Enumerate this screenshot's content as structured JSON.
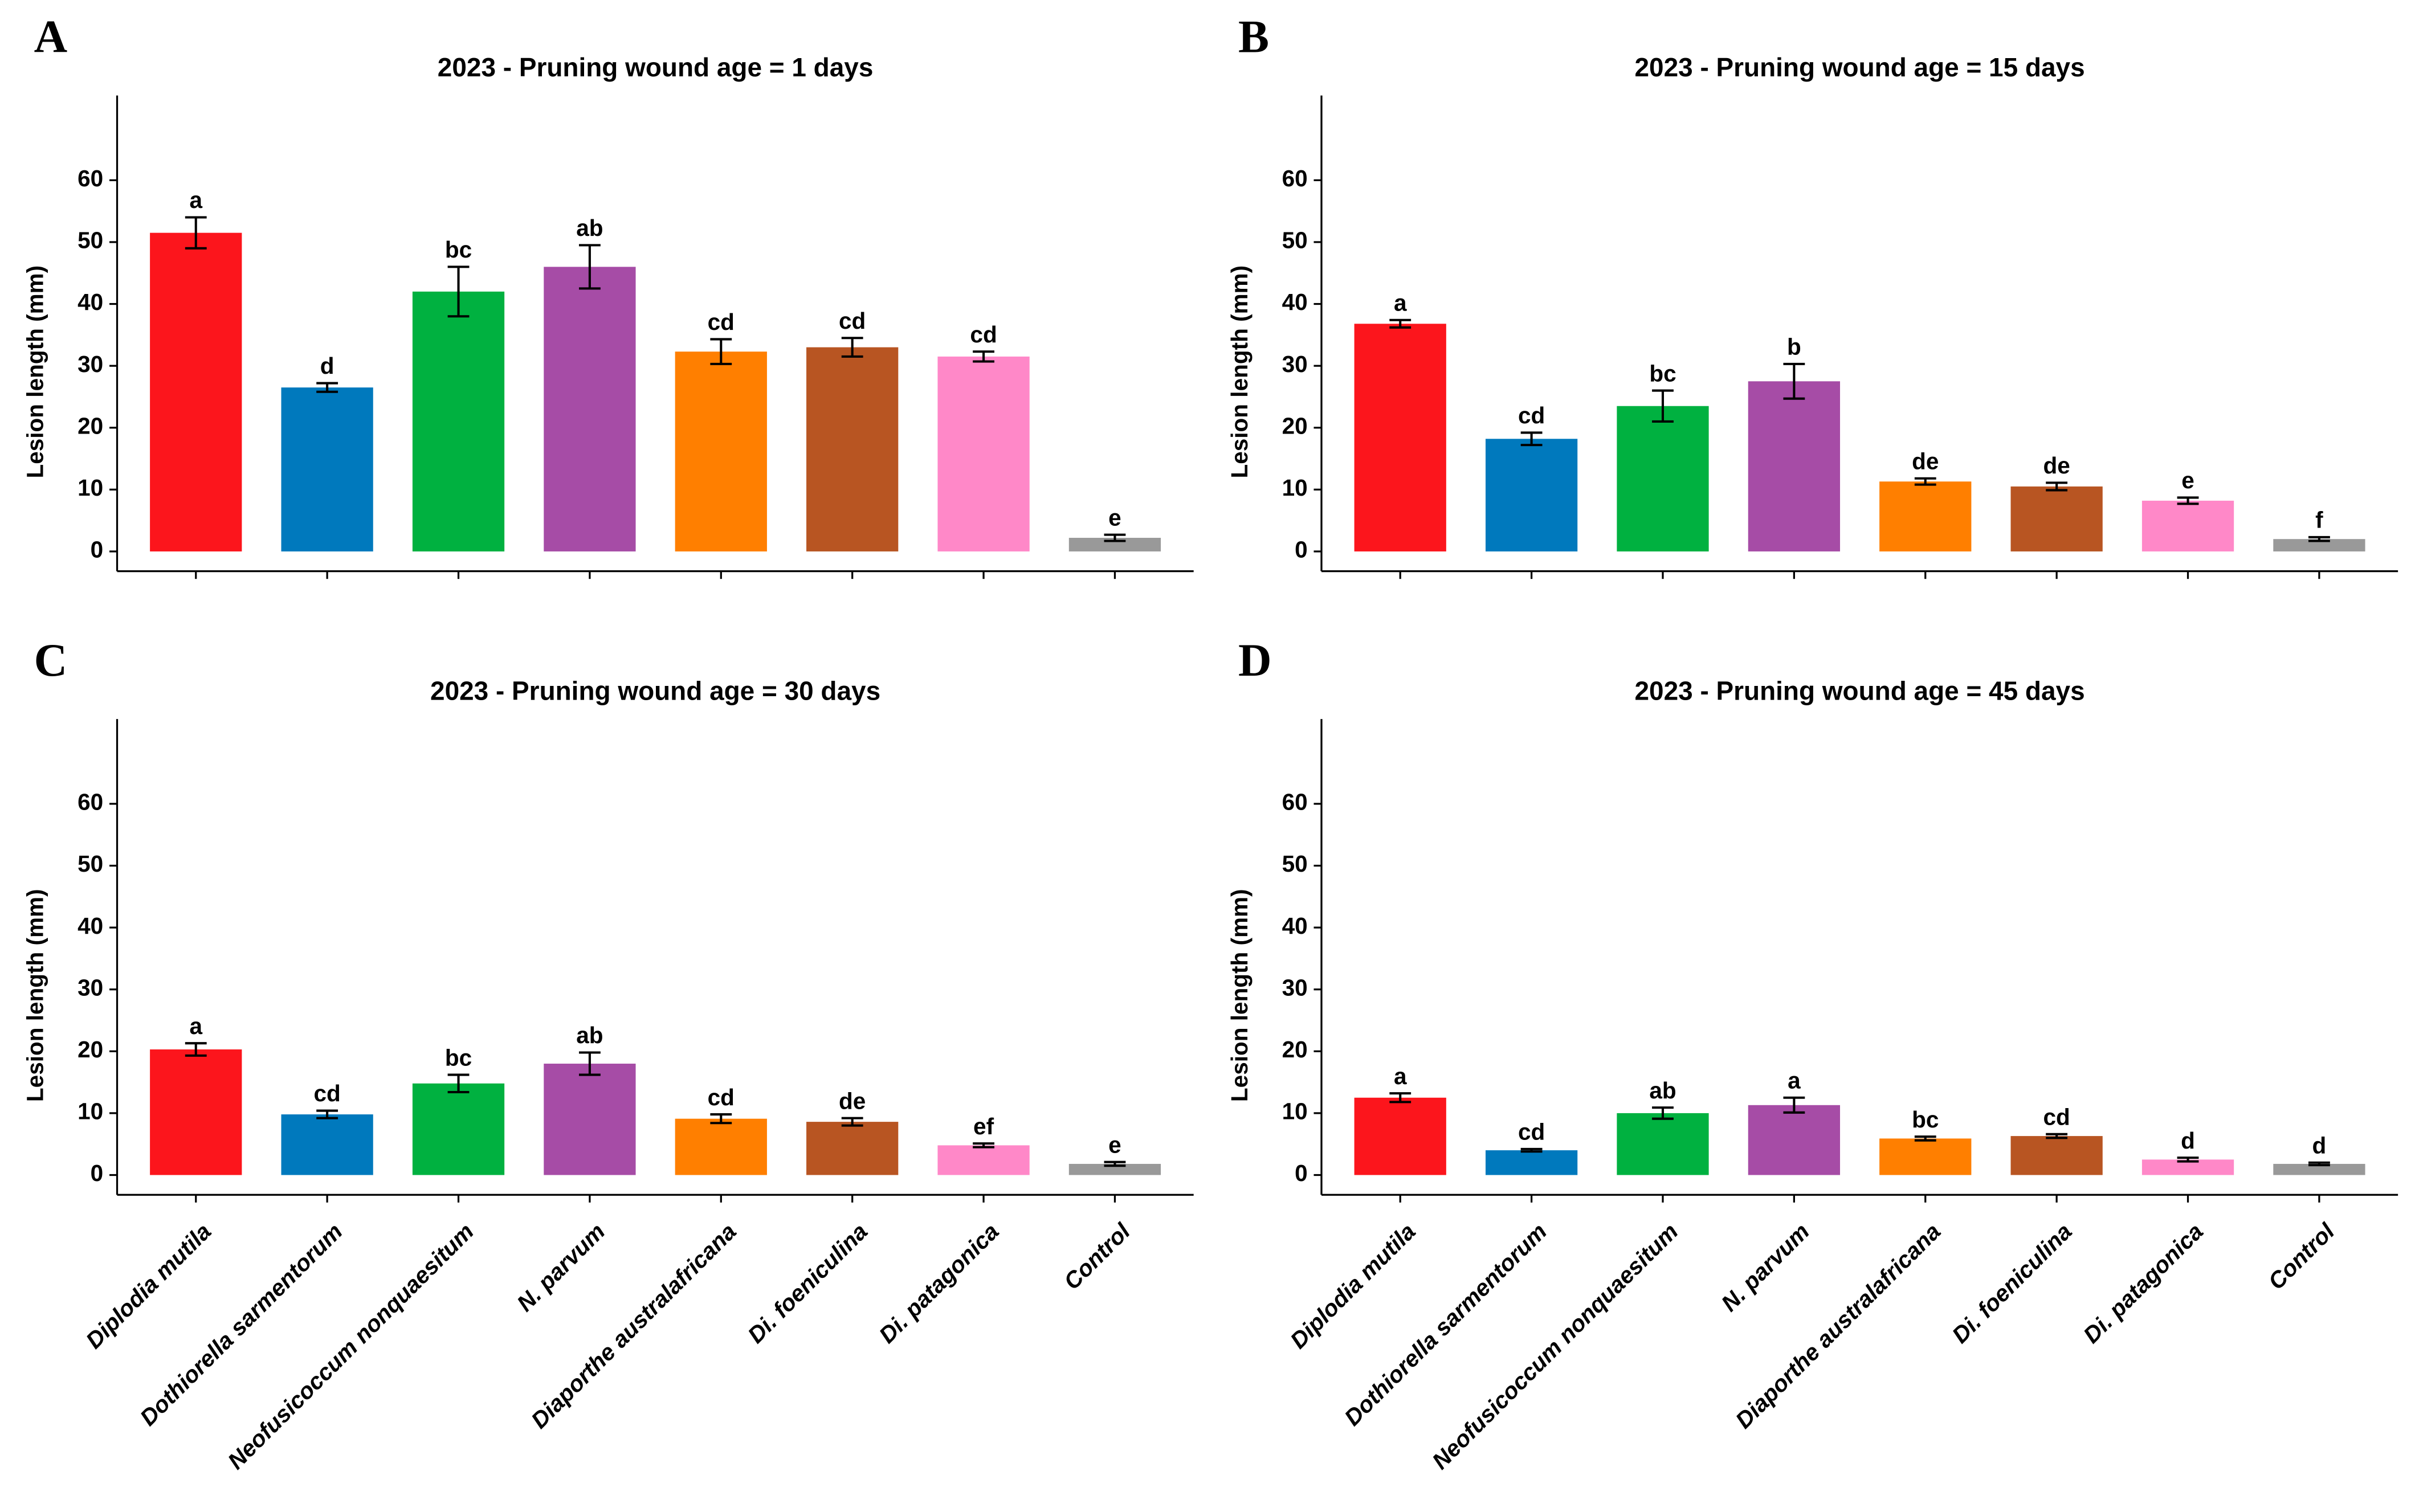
{
  "chart_data": [
    {
      "type": "bar",
      "panel": "A",
      "title": "2023 - Pruning wound age = 1 days",
      "ylabel": "Lesion length (mm)",
      "categories": [
        null,
        null,
        null,
        null,
        null,
        null,
        null,
        null
      ],
      "values": [
        51.5,
        26.5,
        42,
        46,
        32.3,
        33,
        31.5,
        2.2
      ],
      "errors": [
        2.5,
        0.7,
        4,
        3.5,
        2,
        1.5,
        0.8,
        0.5
      ],
      "letters": [
        "a",
        "d",
        "bc",
        "ab",
        "cd",
        "cd",
        "cd",
        "e"
      ],
      "colors": [
        "#fc151c",
        "#0079bd",
        "#00b140",
        "#a64ca6",
        "#ff7f00",
        "#b85522",
        "#ff88c8",
        "#999999"
      ],
      "ylim": [
        -3.2,
        73.7
      ],
      "yticks": [
        0,
        10,
        20,
        30,
        40,
        50,
        60
      ]
    },
    {
      "type": "bar",
      "panel": "B",
      "title": "2023 - Pruning wound age = 15 days",
      "ylabel": "Lesion length (mm)",
      "categories": [
        null,
        null,
        null,
        null,
        null,
        null,
        null,
        null
      ],
      "values": [
        36.8,
        18.2,
        23.5,
        27.5,
        11.3,
        10.5,
        8.2,
        2
      ],
      "errors": [
        0.6,
        1,
        2.5,
        2.8,
        0.5,
        0.6,
        0.5,
        0.3
      ],
      "letters": [
        "a",
        "cd",
        "bc",
        "b",
        "de",
        "de",
        "e",
        "f"
      ],
      "colors": [
        "#fc151c",
        "#0079bd",
        "#00b140",
        "#a64ca6",
        "#ff7f00",
        "#b85522",
        "#ff88c8",
        "#999999"
      ],
      "ylim": [
        -3.2,
        73.7
      ],
      "yticks": [
        0,
        10,
        20,
        30,
        40,
        50,
        60
      ]
    },
    {
      "type": "bar",
      "panel": "C",
      "title": "2023 - Pruning wound age = 30 days",
      "ylabel": "Lesion length (mm)",
      "categories": [
        "Diplodia mutila",
        "Dothiorella sarmentorum",
        "Neofusicoccum nonquaesitum",
        "N. parvum",
        "Diaporthe australafricana",
        "Di. foeniculina",
        "Di. patagonica",
        "Control"
      ],
      "values": [
        20.3,
        9.8,
        14.8,
        18,
        9.1,
        8.6,
        4.8,
        1.8
      ],
      "errors": [
        1,
        0.6,
        1.4,
        1.8,
        0.7,
        0.6,
        0.3,
        0.3
      ],
      "letters": [
        "a",
        "cd",
        "bc",
        "ab",
        "cd",
        "de",
        "ef",
        "e"
      ],
      "colors": [
        "#fc151c",
        "#0079bd",
        "#00b140",
        "#a64ca6",
        "#ff7f00",
        "#b85522",
        "#ff88c8",
        "#999999"
      ],
      "ylim": [
        -3.2,
        73.7
      ],
      "yticks": [
        0,
        10,
        20,
        30,
        40,
        50,
        60
      ]
    },
    {
      "type": "bar",
      "panel": "D",
      "title": "2023 - Pruning wound age = 45 days",
      "ylabel": "Lesion length (mm)",
      "categories": [
        "Diplodia mutila",
        "Dothiorella sarmentorum",
        "Neofusicoccum nonquaesitum",
        "N. parvum",
        "Diaporthe australafricana",
        "Di. foeniculina",
        "Di. patagonica",
        "Control"
      ],
      "values": [
        12.5,
        4,
        10,
        11.3,
        5.9,
        6.3,
        2.5,
        1.8
      ],
      "errors": [
        0.7,
        0.2,
        0.9,
        1.2,
        0.3,
        0.3,
        0.3,
        0.2
      ],
      "letters": [
        "a",
        "cd",
        "ab",
        "a",
        "bc",
        "cd",
        "d",
        "d"
      ],
      "colors": [
        "#fc151c",
        "#0079bd",
        "#00b140",
        "#a64ca6",
        "#ff7f00",
        "#b85522",
        "#ff88c8",
        "#999999"
      ],
      "ylim": [
        -3.2,
        73.7
      ],
      "yticks": [
        0,
        10,
        20,
        30,
        40,
        50,
        60
      ]
    }
  ]
}
